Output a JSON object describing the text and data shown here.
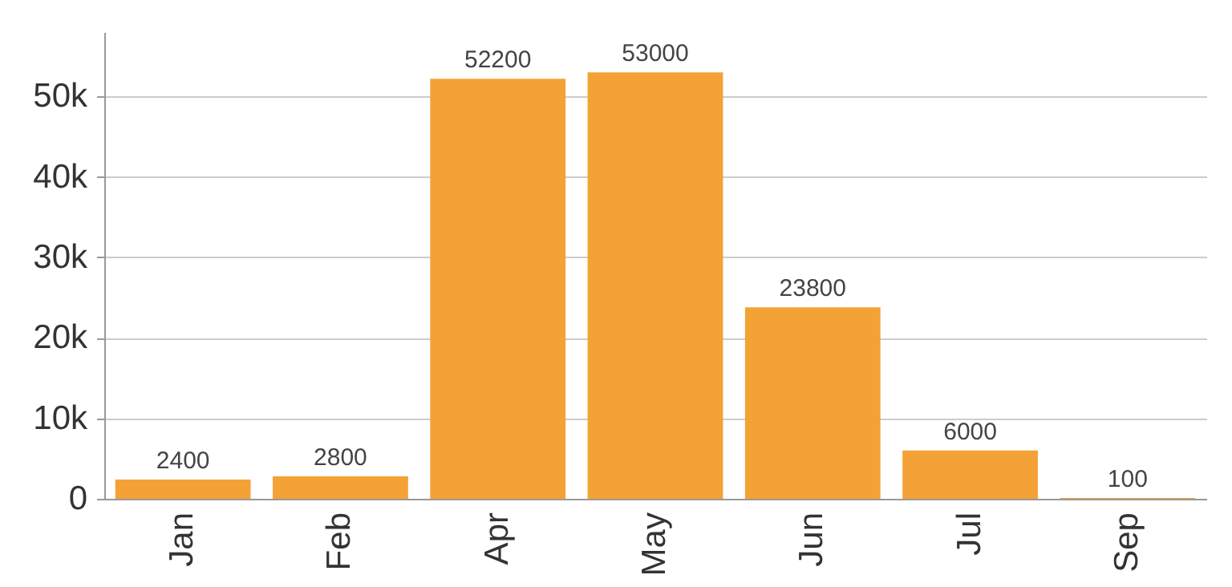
{
  "chart_data": {
    "type": "bar",
    "categories": [
      "Jan",
      "Feb",
      "Apr",
      "May",
      "Jun",
      "Jul",
      "Sep"
    ],
    "values": [
      2400,
      2800,
      52200,
      53000,
      23800,
      6000,
      100
    ],
    "color": "#f4a236",
    "ylim": [
      0,
      58000
    ],
    "yticks": [
      {
        "value": 0,
        "label": "0"
      },
      {
        "value": 10000,
        "label": "10k"
      },
      {
        "value": 20000,
        "label": "20k"
      },
      {
        "value": 30000,
        "label": "30k"
      },
      {
        "value": 40000,
        "label": "40k"
      },
      {
        "value": 50000,
        "label": "50k"
      }
    ],
    "grid": "y",
    "data_labels": true
  }
}
